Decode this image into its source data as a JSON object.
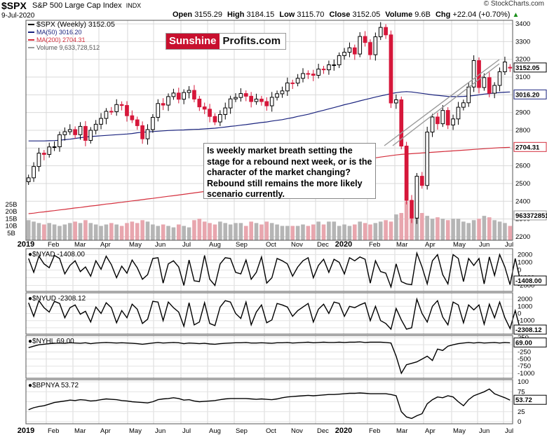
{
  "header": {
    "symbol": "$SPX",
    "name": "S&P 500 Large Cap Index",
    "exchange": "INDX",
    "date": "9-Jul-2020",
    "open_label": "Open",
    "open": "3155.29",
    "high_label": "High",
    "high": "3184.15",
    "low_label": "Low",
    "low": "3115.70",
    "close_label": "Close",
    "close": "3152.05",
    "volume_label": "Volume",
    "volume": "9.6B",
    "chg_label": "Chg",
    "chg": "+22.04 (+0.70%)",
    "chg_arrow": "▲",
    "credit": "© StockCharts.com"
  },
  "logo": {
    "part1": "Sunshine",
    "part2": "Profits.com"
  },
  "annotation": "Is weekly market breath setting the stage for a rebound next week, or is the character of the market changing? Rebound still remains the more likely scenario currently.",
  "colors": {
    "up": "#000000",
    "down": "#d6173a",
    "ma50": "#1a237e",
    "ma200": "#d42f3d",
    "vol_up": "#b5b5b5",
    "vol_down": "#e8a6ae",
    "line": "#000000"
  },
  "chart_data": [
    {
      "type": "candlestick",
      "title": "$SPX (Weekly) 3152.05",
      "legend": [
        {
          "label": "$SPX (Weekly) 3152.05",
          "color": "#000000"
        },
        {
          "label": "MA(50) 3016.20",
          "color": "#1a237e"
        },
        {
          "label": "MA(200) 2704.31",
          "color": "#d42f3d"
        },
        {
          "label": "Volume 9,633,728,512",
          "color": "#999999"
        }
      ],
      "x_labels": [
        "2019",
        "Feb",
        "Mar",
        "Apr",
        "May",
        "Jun",
        "Jul",
        "Aug",
        "Sep",
        "Oct",
        "Nov",
        "Dec",
        "2020",
        "Feb",
        "Mar",
        "Apr",
        "May",
        "Jun",
        "Jul"
      ],
      "y_ticks": [
        2200,
        2300,
        2400,
        2500,
        2600,
        2700,
        2800,
        2900,
        3000,
        3100,
        3200,
        3300,
        3400
      ],
      "ylim": [
        2180,
        3420
      ],
      "volume_ticks": [
        "5B",
        "10B",
        "15B",
        "20B",
        "25B"
      ],
      "last_labels": {
        "close": "3152.05",
        "ma50": "3016.20",
        "ma200": "2704.31",
        "volume": "9633728512"
      },
      "close": [
        2532,
        2596,
        2671,
        2664,
        2706,
        2707,
        2775,
        2792,
        2804,
        2775,
        2822,
        2743,
        2800,
        2834,
        2867,
        2907,
        2905,
        2945,
        2940,
        2882,
        2859,
        2826,
        2752,
        2804,
        2873,
        2951,
        2942,
        2990,
        3010,
        2975,
        3013,
        3025,
        2976,
        2932,
        2919,
        2878,
        2847,
        2889,
        2926,
        2977,
        2985,
        3007,
        2992,
        2962,
        2976,
        2962,
        2938,
        2986,
        3006,
        3022,
        3067,
        3066,
        3093,
        3120,
        3117,
        3110,
        3145,
        3141,
        3169,
        3169,
        3221,
        3240,
        3265,
        3230,
        3329,
        3295,
        3226,
        3327,
        3380,
        3338,
        2954,
        2972,
        2711,
        2405,
        2305,
        2541,
        2489,
        2790,
        2875,
        2837,
        2912,
        2830,
        2864,
        2930,
        2955,
        3044,
        3193,
        3041,
        3097,
        3009,
        3053,
        3130,
        3185,
        3152
      ],
      "open": [
        2510,
        2532,
        2596,
        2671,
        2664,
        2706,
        2707,
        2775,
        2792,
        2804,
        2775,
        2822,
        2743,
        2800,
        2834,
        2867,
        2907,
        2905,
        2945,
        2940,
        2882,
        2859,
        2826,
        2752,
        2804,
        2873,
        2951,
        2942,
        2990,
        3010,
        2975,
        3013,
        3025,
        2976,
        2932,
        2919,
        2878,
        2847,
        2889,
        2926,
        2977,
        2985,
        3007,
        2992,
        2962,
        2976,
        2962,
        2938,
        2986,
        3006,
        3022,
        3067,
        3066,
        3093,
        3120,
        3117,
        3110,
        3145,
        3141,
        3169,
        3169,
        3221,
        3240,
        3265,
        3230,
        3329,
        3295,
        3226,
        3327,
        3380,
        3338,
        2954,
        2972,
        2711,
        2405,
        2305,
        2541,
        2489,
        2790,
        2875,
        2837,
        2912,
        2830,
        2864,
        2930,
        2955,
        3044,
        3193,
        3041,
        3097,
        3009,
        3053,
        3130,
        3155
      ],
      "ma50": [
        2740,
        2740,
        2740,
        2740,
        2741,
        2742,
        2744,
        2747,
        2750,
        2754,
        2758,
        2762,
        2765,
        2767,
        2769,
        2771,
        2773,
        2775,
        2777,
        2779,
        2782,
        2786,
        2789,
        2791,
        2793,
        2795,
        2797,
        2799,
        2800,
        2801,
        2802,
        2804,
        2805,
        2806,
        2808,
        2810,
        2812,
        2815,
        2818,
        2822,
        2825,
        2829,
        2832,
        2836,
        2840,
        2844,
        2847,
        2852,
        2856,
        2860,
        2866,
        2871,
        2878,
        2884,
        2890,
        2898,
        2906,
        2913,
        2921,
        2928,
        2936,
        2944,
        2951,
        2958,
        2966,
        2973,
        2980,
        2987,
        2994,
        3000,
        3007,
        3012,
        3016,
        3018,
        3016,
        3012,
        3008,
        3004,
        3000,
        2997,
        2994,
        2991,
        2990,
        2990,
        2991,
        2993,
        2996,
        3000,
        3004,
        3007,
        3010,
        3013,
        3015,
        3016
      ],
      "ma200": [
        2330,
        2333,
        2337,
        2340,
        2344,
        2347,
        2351,
        2354,
        2358,
        2362,
        2365,
        2369,
        2373,
        2376,
        2380,
        2384,
        2387,
        2391,
        2394,
        2398,
        2402,
        2405,
        2409,
        2413,
        2416,
        2420,
        2424,
        2428,
        2431,
        2435,
        2439,
        2443,
        2447,
        2451,
        2455,
        2459,
        2463,
        2467,
        2471,
        2476,
        2480,
        2485,
        2490,
        2496,
        2501,
        2507,
        2513,
        2519,
        2525,
        2531,
        2538,
        2545,
        2552,
        2559,
        2566,
        2574,
        2582,
        2589,
        2597,
        2604,
        2610,
        2616,
        2621,
        2626,
        2631,
        2636,
        2640,
        2645,
        2649,
        2653,
        2657,
        2661,
        2664,
        2666,
        2668,
        2670,
        2672,
        2674,
        2676,
        2678,
        2680,
        2682,
        2684,
        2686,
        2688,
        2690,
        2692,
        2694,
        2696,
        2698,
        2700,
        2702,
        2703,
        2704
      ],
      "volume": [
        14,
        13,
        12,
        11,
        12,
        11,
        10,
        11,
        12,
        13,
        12,
        14,
        12,
        11,
        10,
        11,
        12,
        11,
        10,
        12,
        13,
        12,
        14,
        13,
        11,
        10,
        11,
        10,
        9,
        11,
        10,
        9,
        14,
        15,
        13,
        12,
        11,
        13,
        12,
        11,
        12,
        12,
        10,
        13,
        12,
        11,
        13,
        12,
        11,
        10,
        10,
        10,
        10,
        11,
        10,
        11,
        13,
        11,
        13,
        13,
        10,
        11,
        10,
        11,
        13,
        12,
        11,
        12,
        13,
        14,
        13,
        18,
        19,
        27,
        22,
        21,
        19,
        17,
        15,
        16,
        15,
        14,
        15,
        15,
        13,
        12,
        14,
        15,
        17,
        16,
        14,
        13,
        12,
        10
      ]
    },
    {
      "type": "line",
      "title": "$NYAD -1408.00",
      "last_label": "-1408.00",
      "y_ticks": [
        "2000",
        "1000",
        "0",
        "-1000",
        "-2000"
      ],
      "ylim": [
        -2500,
        2500
      ],
      "values": [
        1500,
        -300,
        1800,
        800,
        300,
        1900,
        1500,
        -500,
        600,
        1200,
        -200,
        400,
        -800,
        1200,
        100,
        1800,
        700,
        -1000,
        500,
        -400,
        1300,
        300,
        -1200,
        -600,
        1500,
        1600,
        -1700,
        800,
        1200,
        400,
        -2000,
        1300,
        -1400,
        -1500,
        1900,
        -1200,
        -2000,
        800,
        1600,
        1500,
        -300,
        -500,
        1300,
        -1200,
        -300,
        1700,
        -1700,
        -1000,
        1500,
        1200,
        800,
        -800,
        400,
        1200,
        1600,
        -1000,
        600,
        1400,
        -300,
        1400,
        1000,
        -500,
        1600,
        1200,
        1700,
        1400,
        -1700,
        1200,
        -200,
        -400,
        -2200,
        800,
        -1500,
        -1800,
        -1900,
        2200,
        400,
        -1800,
        1200,
        2000,
        -600,
        -1800,
        2000,
        1500,
        -1500,
        1500,
        600,
        1500,
        -1800,
        1700,
        -700,
        2000,
        400,
        -1900,
        1500,
        -1408
      ]
    },
    {
      "type": "line",
      "title": "$NYUD -2308.12",
      "last_label": "-2308.12",
      "y_ticks": [
        "2000",
        "1000",
        "0",
        "-1000",
        "-2000"
      ],
      "ylim": [
        -2600,
        2600
      ],
      "values": [
        1500,
        -400,
        1800,
        800,
        200,
        1700,
        1400,
        -600,
        800,
        1200,
        -100,
        300,
        -1200,
        900,
        0,
        1500,
        800,
        -1300,
        400,
        -600,
        1300,
        600,
        -1400,
        -800,
        1700,
        1600,
        -1000,
        1600,
        800,
        200,
        -1800,
        1500,
        -1600,
        -1200,
        1500,
        -1400,
        -1700,
        900,
        1800,
        1600,
        0,
        -700,
        1600,
        -1600,
        200,
        1200,
        -1300,
        -900,
        1400,
        1200,
        900,
        -400,
        400,
        900,
        1400,
        -1200,
        600,
        1300,
        0,
        1600,
        1400,
        -400,
        1000,
        800,
        1200,
        1500,
        -1000,
        1000,
        -1000,
        -1400,
        -2200,
        700,
        -900,
        -2200,
        -2000,
        2000,
        0,
        -1200,
        1000,
        1800,
        -500,
        -1600,
        1600,
        1200,
        -1300,
        1200,
        500,
        1200,
        -1500,
        1300,
        -600,
        1600,
        -600,
        -2100,
        400,
        -2308
      ]
    },
    {
      "type": "line",
      "title": "$NYHL 69.00",
      "last_label": "69.00",
      "y_ticks": [
        "250",
        "0",
        "-250",
        "-500",
        "-750",
        "-1000"
      ],
      "ylim": [
        -1100,
        250
      ],
      "values": [
        -100,
        -50,
        0,
        20,
        40,
        50,
        60,
        50,
        70,
        60,
        50,
        70,
        40,
        60,
        70,
        80,
        70,
        60,
        70,
        60,
        50,
        40,
        20,
        40,
        60,
        80,
        60,
        70,
        80,
        70,
        40,
        60,
        50,
        40,
        50,
        30,
        20,
        40,
        50,
        60,
        70,
        70,
        80,
        60,
        60,
        70,
        60,
        50,
        70,
        70,
        80,
        60,
        70,
        80,
        90,
        70,
        80,
        90,
        80,
        80,
        90,
        80,
        90,
        90,
        100,
        80,
        90,
        90,
        90,
        80,
        60,
        -400,
        -1000,
        -700,
        -650,
        -600,
        -500,
        -400,
        -550,
        -150,
        -200,
        -50,
        0,
        40,
        60,
        80,
        60,
        80,
        60,
        70,
        80,
        60,
        80,
        69
      ]
    },
    {
      "type": "line",
      "title": "$BPNYA 53.72",
      "last_label": "53.72",
      "y_ticks": [
        "100",
        "75",
        "50",
        "25",
        "0"
      ],
      "ylim": [
        0,
        100
      ],
      "values": [
        30,
        35,
        38,
        40,
        44,
        48,
        50,
        52,
        54,
        53,
        55,
        54,
        52,
        53,
        55,
        57,
        56,
        55,
        53,
        52,
        50,
        49,
        48,
        47,
        50,
        55,
        57,
        58,
        60,
        58,
        54,
        55,
        52,
        50,
        51,
        52,
        53,
        55,
        57,
        58,
        58,
        58,
        58,
        57,
        56,
        57,
        56,
        55,
        57,
        60,
        62,
        63,
        64,
        65,
        66,
        65,
        66,
        67,
        68,
        68,
        69,
        70,
        71,
        71,
        72,
        71,
        70,
        70,
        70,
        70,
        68,
        65,
        25,
        12,
        8,
        15,
        20,
        45,
        55,
        62,
        60,
        65,
        62,
        50,
        40,
        55,
        65,
        70,
        75,
        82,
        70,
        65,
        60,
        54
      ]
    }
  ]
}
